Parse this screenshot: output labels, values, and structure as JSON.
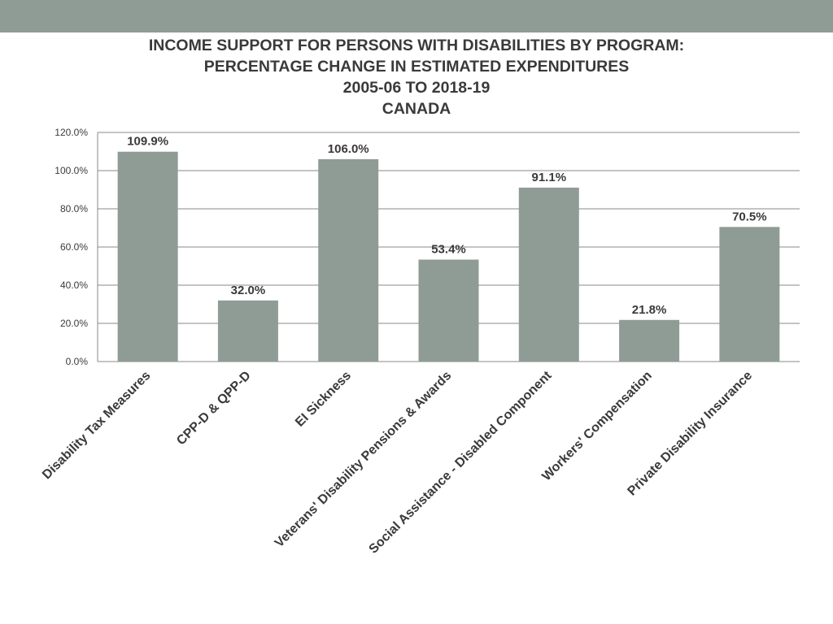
{
  "title_lines": [
    "INCOME SUPPORT FOR PERSONS WITH DISABILITIES BY PROGRAM:",
    "PERCENTAGE CHANGE IN ESTIMATED EXPENDITURES",
    "2005-06 TO 2018-19",
    "CANADA"
  ],
  "chart_data": {
    "type": "bar",
    "title": "INCOME SUPPORT FOR PERSONS WITH DISABILITIES BY PROGRAM: PERCENTAGE CHANGE IN ESTIMATED EXPENDITURES 2005-06 TO 2018-19 CANADA",
    "categories": [
      "Disability Tax Measures",
      "CPP-D & QPP-D",
      "EI Sickness",
      "Veterans' Disability Pensions & Awards",
      "Social Assistance - Disabled Component",
      "Workers' Compensation",
      "Private Disability Insurance"
    ],
    "values": [
      109.9,
      32.0,
      106.0,
      53.4,
      91.1,
      21.8,
      70.5
    ],
    "data_labels": [
      "109.9%",
      "32.0%",
      "106.0%",
      "53.4%",
      "91.1%",
      "21.8%",
      "70.5%"
    ],
    "xlabel": "",
    "ylabel": "",
    "ylim": [
      0,
      120
    ],
    "yticks": [
      "0.0%",
      "20.0%",
      "40.0%",
      "60.0%",
      "80.0%",
      "100.0%",
      "120.0%"
    ],
    "grid": true,
    "legend": "none",
    "bar_color": "#8f9c95",
    "band_color": "#8f9c95"
  }
}
